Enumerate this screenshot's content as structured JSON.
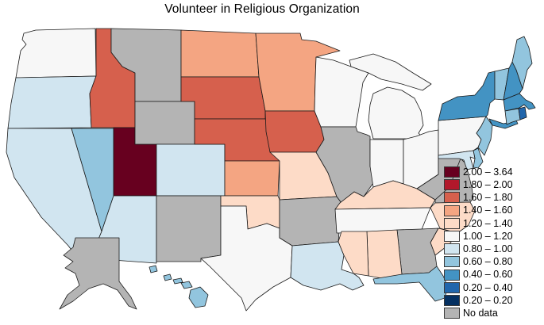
{
  "title": "Volunteer in Religious Organization",
  "chart_data": {
    "type": "choropleth",
    "title": "Volunteer in Religious Organization",
    "region": "United States (50 states)",
    "legend_position": "right",
    "no_data_label": "No data",
    "legend": [
      {
        "label": "2.00 – 3.64",
        "color": "#67001f"
      },
      {
        "label": "1.80 – 2.00",
        "color": "#b2182b"
      },
      {
        "label": "1.60 – 1.80",
        "color": "#d6604d"
      },
      {
        "label": "1.40 – 1.60",
        "color": "#f4a582"
      },
      {
        "label": "1.20 – 1.40",
        "color": "#fddbc7"
      },
      {
        "label": "1.00 – 1.20",
        "color": "#f7f7f7"
      },
      {
        "label": "0.80 – 1.00",
        "color": "#d1e5f0"
      },
      {
        "label": "0.60 – 0.80",
        "color": "#92c5de"
      },
      {
        "label": "0.40 – 0.60",
        "color": "#4393c3"
      },
      {
        "label": "0.20 – 0.40",
        "color": "#2166ac"
      },
      {
        "label": "0.20 – 0.20",
        "color": "#053061"
      },
      {
        "label": "No data",
        "color": "#b4b4b4"
      }
    ],
    "states": {
      "WA": "1.00 – 1.20",
      "OR": "0.80 – 1.00",
      "CA": "0.80 – 1.00",
      "ID": "1.60 – 1.80",
      "NV": "0.60 – 0.80",
      "UT": "2.00 – 3.64",
      "AZ": "0.80 – 1.00",
      "MT": "No data",
      "WY": "No data",
      "CO": "0.80 – 1.00",
      "NM": "No data",
      "ND": "1.40 – 1.60",
      "SD": "1.60 – 1.80",
      "NE": "1.60 – 1.80",
      "KS": "1.40 – 1.60",
      "OK": "1.20 – 1.40",
      "TX": "1.00 – 1.20",
      "MN": "1.40 – 1.60",
      "IA": "1.60 – 1.80",
      "MO": "1.20 – 1.40",
      "AR": "No data",
      "LA": "0.80 – 1.00",
      "WI": "1.00 – 1.20",
      "IL": "No data",
      "MI": "1.00 – 1.20",
      "IN": "1.00 – 1.20",
      "OH": "1.00 – 1.20",
      "KY": "1.20 – 1.40",
      "TN": "1.00 – 1.20",
      "MS": "1.20 – 1.40",
      "AL": "1.20 – 1.40",
      "GA": "No data",
      "FL": "0.60 – 0.80",
      "SC": "1.20 – 1.40",
      "NC": "1.20 – 1.40",
      "VA": "No data",
      "WV": "No data",
      "PA": "1.00 – 1.20",
      "NY": "0.40 – 0.60",
      "NJ": "0.60 – 0.80",
      "DE": "0.60 – 0.80",
      "MD": "0.80 – 1.00",
      "CT": "0.60 – 0.80",
      "RI": "0.20 – 0.40",
      "MA": "0.40 – 0.60",
      "VT": "0.60 – 0.80",
      "NH": "0.40 – 0.60",
      "ME": "0.60 – 0.80",
      "AK": "No data",
      "HI": "0.60 – 0.80"
    }
  }
}
